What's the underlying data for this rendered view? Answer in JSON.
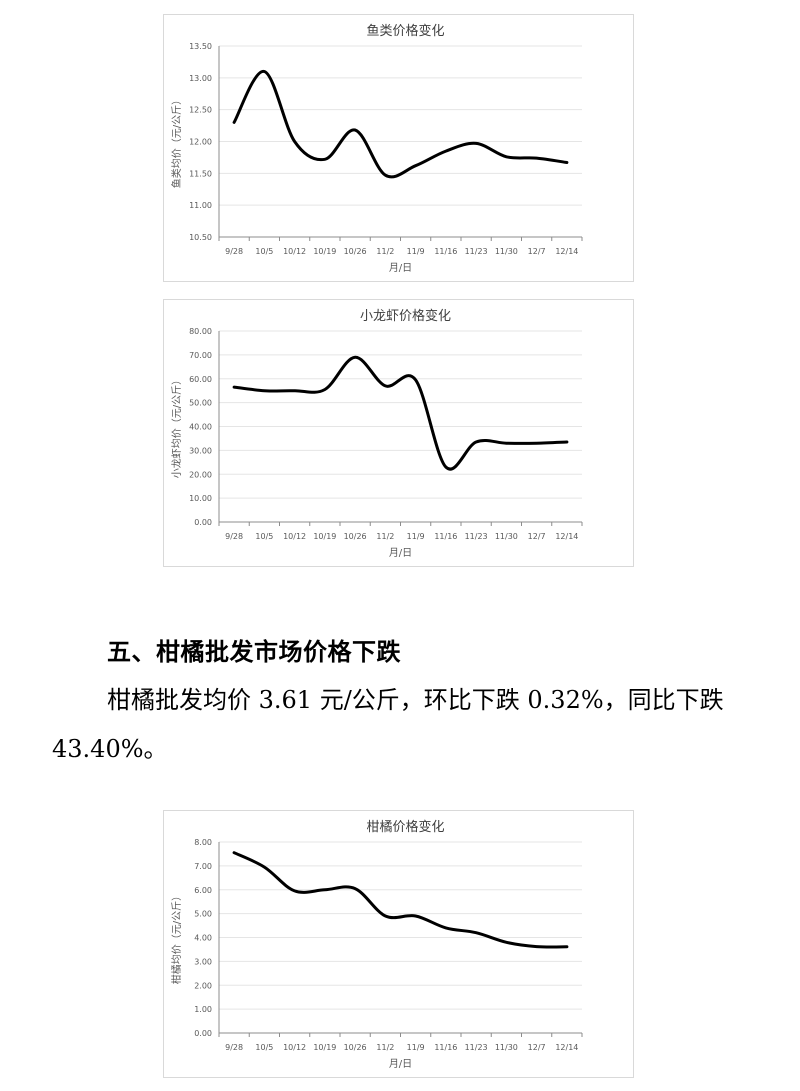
{
  "section": {
    "heading": "五、柑橘批发市场价格下跌",
    "paragraph": "柑橘批发均价 3.61 元/公斤，环比下跌 0.32%，同比下跌 43.40%。"
  },
  "chart_data": [
    {
      "type": "line",
      "title": "鱼类价格变化",
      "xlabel": "月/日",
      "ylabel": "鱼类均价（元/公斤）",
      "ylim": [
        10.5,
        13.5
      ],
      "yticks": [
        "10.50",
        "11.00",
        "11.50",
        "12.00",
        "12.50",
        "13.00",
        "13.50"
      ],
      "categories": [
        "9/28",
        "10/5",
        "10/12",
        "10/19",
        "10/26",
        "11/2",
        "11/9",
        "11/16",
        "11/23",
        "11/30",
        "12/7",
        "12/14"
      ],
      "series": [
        {
          "values": [
            12.3,
            13.1,
            12.0,
            11.72,
            12.18,
            11.47,
            11.62,
            11.85,
            11.97,
            11.76,
            11.74,
            11.67
          ]
        }
      ],
      "grid": true,
      "line_color": "#000000"
    },
    {
      "type": "line",
      "title": "小龙虾价格变化",
      "xlabel": "月/日",
      "ylabel": "小龙虾均价（元/公斤）",
      "ylim": [
        0,
        80
      ],
      "yticks": [
        "0.00",
        "10.00",
        "20.00",
        "30.00",
        "40.00",
        "50.00",
        "60.00",
        "70.00",
        "80.00"
      ],
      "categories": [
        "9/28",
        "10/5",
        "10/12",
        "10/19",
        "10/26",
        "11/2",
        "11/9",
        "11/16",
        "11/23",
        "11/30",
        "12/7",
        "12/14"
      ],
      "series": [
        {
          "values": [
            56.5,
            55.0,
            55.0,
            55.5,
            69.0,
            57.0,
            59.5,
            23.0,
            33.5,
            33.0,
            33.0,
            33.5
          ]
        }
      ],
      "grid": true,
      "line_color": "#000000"
    },
    {
      "type": "line",
      "title": "柑橘价格变化",
      "xlabel": "月/日",
      "ylabel": "柑橘均价（元/公斤）",
      "ylim": [
        0,
        8
      ],
      "yticks": [
        "0.00",
        "1.00",
        "2.00",
        "3.00",
        "4.00",
        "5.00",
        "6.00",
        "7.00",
        "8.00"
      ],
      "categories": [
        "9/28",
        "10/5",
        "10/12",
        "10/19",
        "10/26",
        "11/2",
        "11/9",
        "11/16",
        "11/23",
        "11/30",
        "12/7",
        "12/14"
      ],
      "series": [
        {
          "values": [
            7.55,
            6.95,
            5.95,
            6.0,
            6.05,
            4.9,
            4.9,
            4.4,
            4.2,
            3.8,
            3.62,
            3.61
          ]
        }
      ],
      "grid": true,
      "line_color": "#000000"
    }
  ]
}
